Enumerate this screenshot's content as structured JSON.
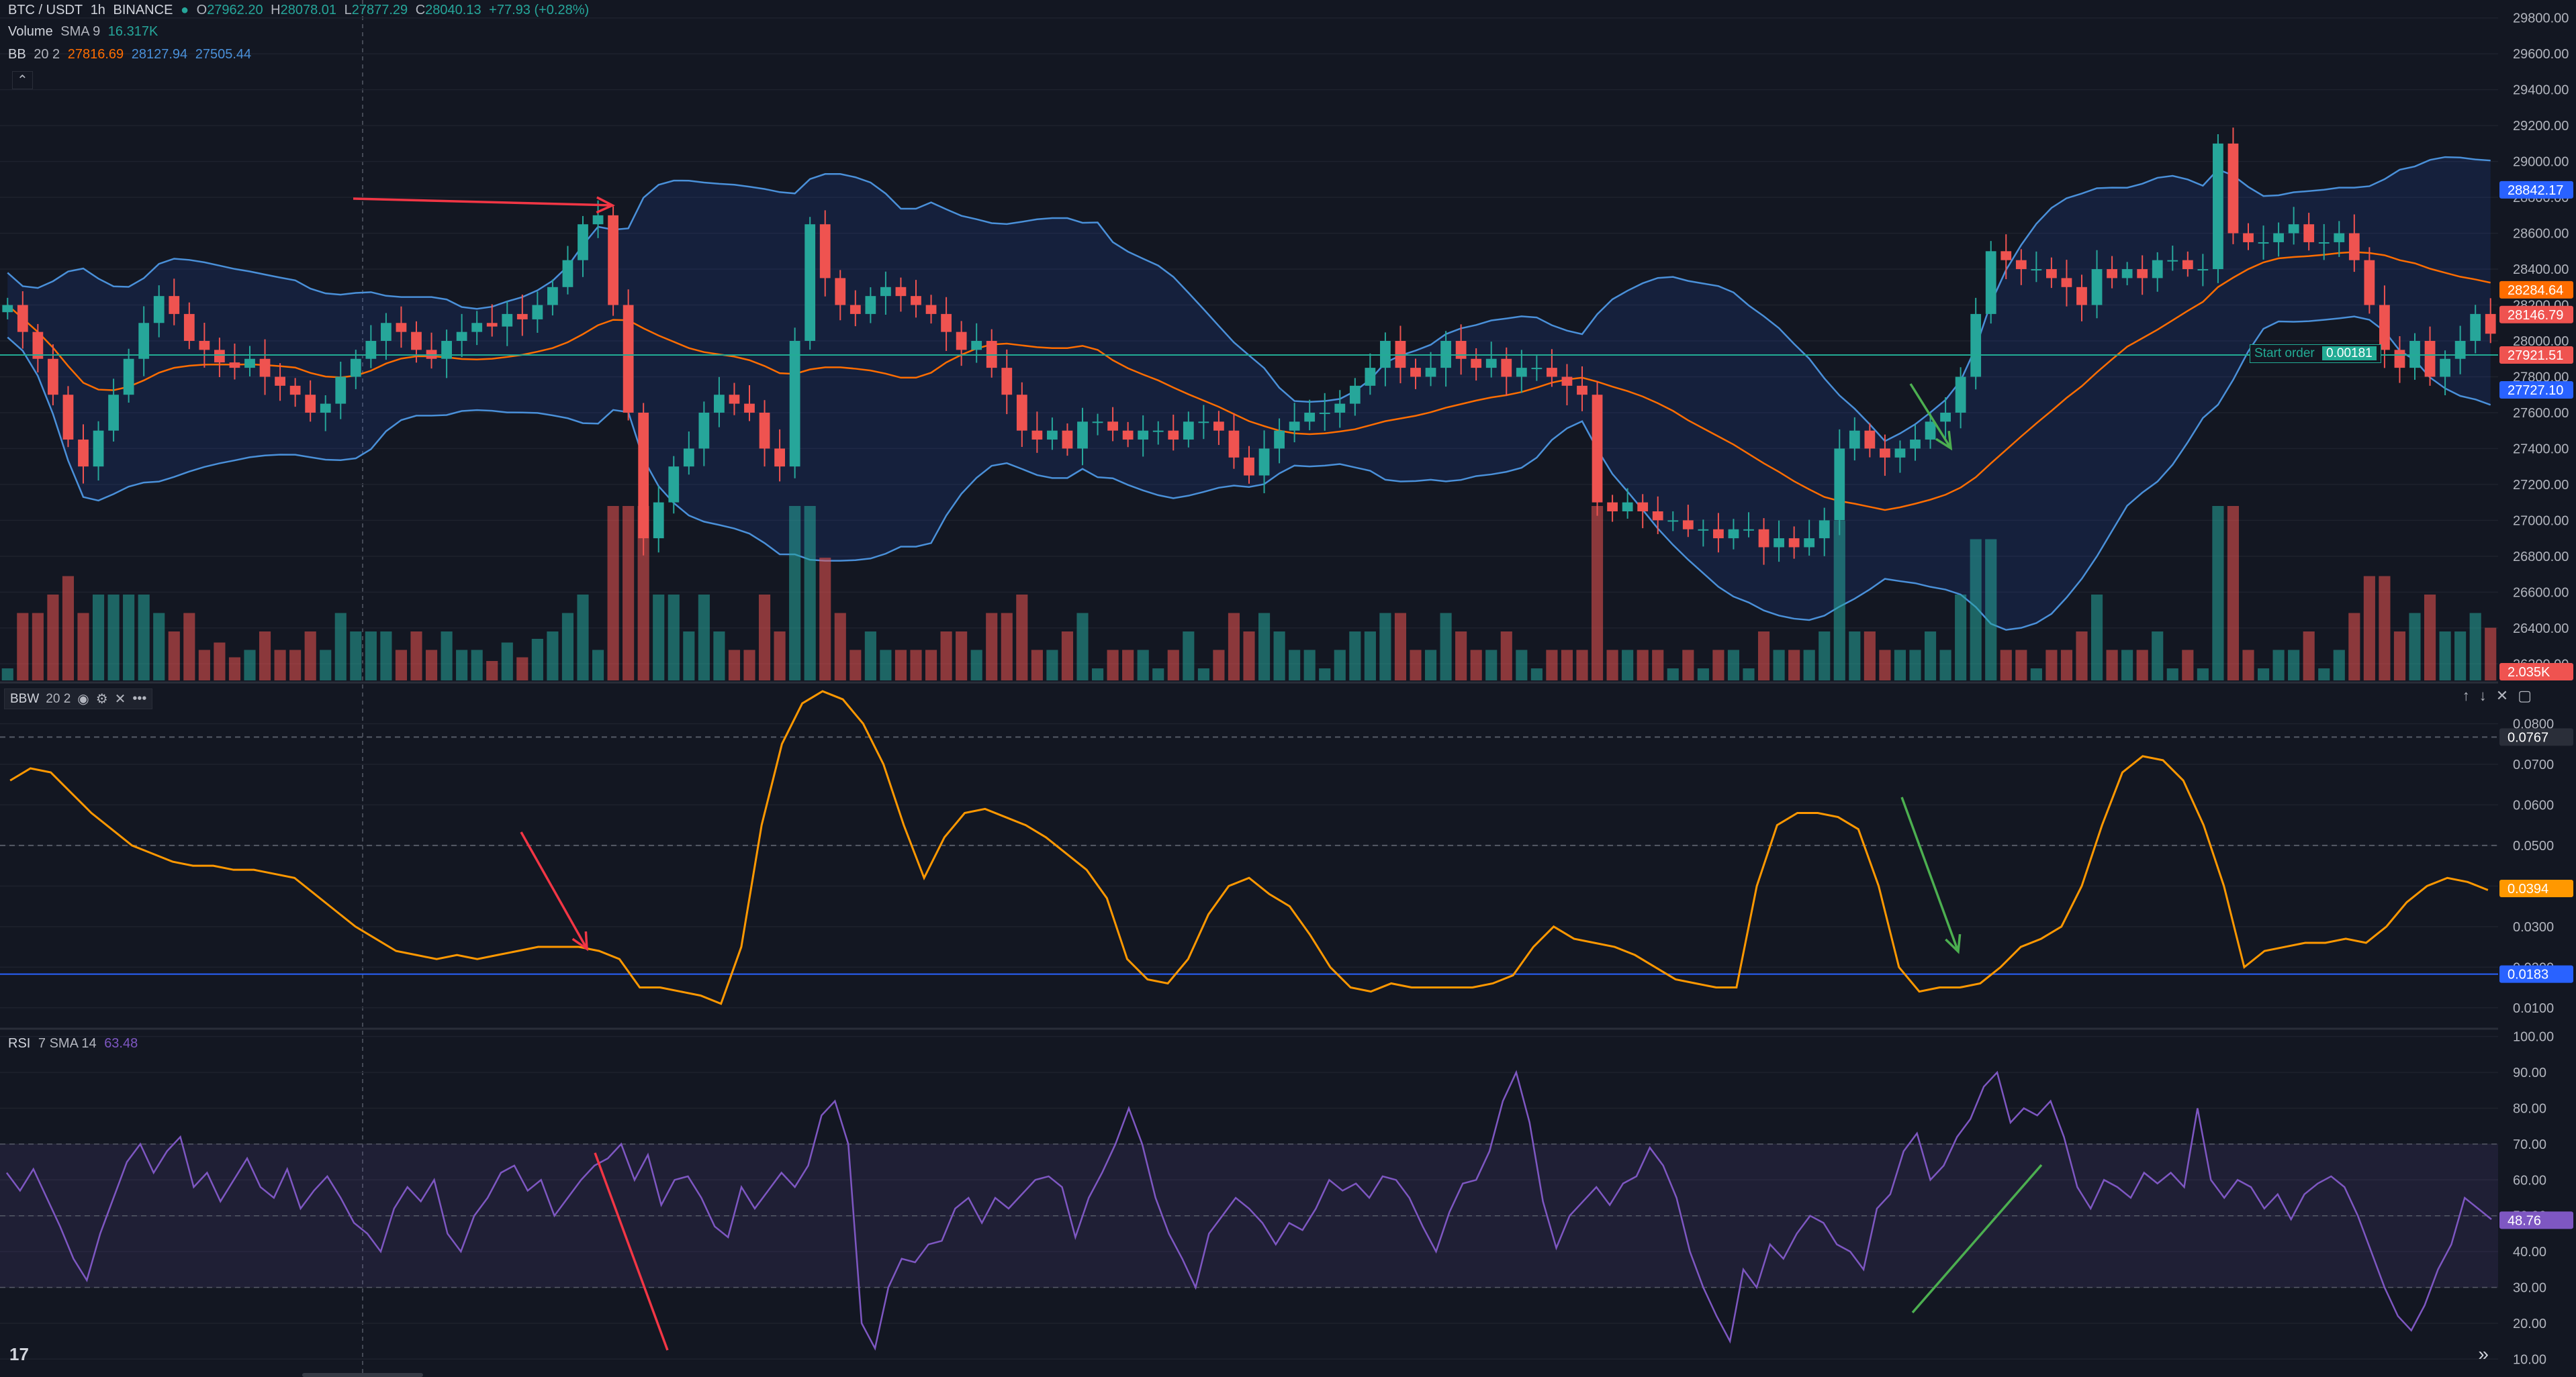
{
  "header": {
    "symbol": "BTC / USDT",
    "interval": "1h",
    "exchange": "BINANCE",
    "open_label": "O",
    "open": "27962.20",
    "high_label": "H",
    "high": "28078.01",
    "low_label": "L",
    "low": "27877.29",
    "close_label": "C",
    "close": "28040.13",
    "change": "+77.93 (+0.28%)"
  },
  "volume_legend": {
    "name": "Volume",
    "ma": "SMA 9",
    "value": "16.317K"
  },
  "bb_legend": {
    "name": "BB",
    "params": "20 2",
    "basis": "27816.69",
    "upper": "28127.94",
    "lower": "27505.44"
  },
  "bbw_legend": {
    "name": "BBW",
    "params": "20 2"
  },
  "rsi_legend": {
    "name": "RSI",
    "params": "7 SMA 14",
    "value": "63.48"
  },
  "order": {
    "label": "Start order",
    "qty": "0.00181"
  },
  "icons": {
    "eye": "eye-icon",
    "settings": "gear-icon",
    "close": "close-icon",
    "more": "more-icon",
    "collapse": "chevron-up-icon",
    "logo": "tradingview-logo-icon",
    "scroll": "fast-forward-icon",
    "up": "arrow-up-icon",
    "down": "arrow-down-icon",
    "maximize": "maximize-icon"
  },
  "colors": {
    "bg": "#131722",
    "up": "#26a69a",
    "down": "#ef5350",
    "bb_band": "#2962ff",
    "bb_line": "#4a90d9",
    "bb_basis": "#ff6d00",
    "bbw": "#ff9800",
    "rsi": "#7e57c2",
    "grid": "#1e222d",
    "axis_text": "#b2b5be",
    "arrow_red": "#f23645",
    "arrow_green": "#4caf50"
  },
  "chart_data": [
    {
      "type": "candlestick",
      "title": "BTC / USDT",
      "ylim": [
        26100,
        29900
      ],
      "y_ticks": [
        "29800.00",
        "29600.00",
        "29400.00",
        "29200.00",
        "29000.00",
        "28800.00",
        "28600.00",
        "28400.00",
        "28200.00",
        "28000.00",
        "27800.00",
        "27600.00",
        "27400.00",
        "27200.00",
        "27000.00",
        "26800.00",
        "26600.00",
        "26400.00",
        "26200.00"
      ],
      "closes": [
        28200,
        28050,
        27900,
        27700,
        27450,
        27300,
        27500,
        27700,
        27900,
        28100,
        28250,
        28150,
        28000,
        27950,
        27880,
        27850,
        27900,
        27800,
        27750,
        27700,
        27600,
        27650,
        27800,
        27900,
        28000,
        28100,
        28050,
        27950,
        27900,
        28000,
        28050,
        28100,
        28080,
        28150,
        28120,
        28200,
        28300,
        28450,
        28650,
        28700,
        28200,
        27600,
        26900,
        27100,
        27300,
        27400,
        27600,
        27700,
        27650,
        27600,
        27400,
        27300,
        28000,
        28650,
        28350,
        28200,
        28150,
        28250,
        28300,
        28250,
        28200,
        28150,
        28050,
        27950,
        28000,
        27850,
        27700,
        27500,
        27450,
        27500,
        27400,
        27550,
        27550,
        27500,
        27450,
        27500,
        27500,
        27450,
        27550,
        27550,
        27500,
        27350,
        27250,
        27400,
        27500,
        27550,
        27600,
        27600,
        27650,
        27750,
        27850,
        28000,
        27850,
        27800,
        27850,
        28000,
        27900,
        27850,
        27900,
        27800,
        27850,
        27850,
        27800,
        27750,
        27700,
        27100,
        27050,
        27100,
        27050,
        27000,
        27000,
        26950,
        26950,
        26900,
        26950,
        26950,
        26850,
        26900,
        26850,
        26900,
        27000,
        27400,
        27500,
        27400,
        27350,
        27400,
        27450,
        27550,
        27600,
        27800,
        28150,
        28500,
        28450,
        28400,
        28400,
        28350,
        28300,
        28200,
        28400,
        28350,
        28400,
        28350,
        28450,
        28450,
        28400,
        28400,
        29100,
        28600,
        28550,
        28550,
        28600,
        28650,
        28550,
        28550,
        28600,
        28450,
        28200,
        27950,
        27850,
        28000,
        27800,
        27900,
        28000,
        28150,
        28040
      ],
      "y_badges": [
        {
          "value": "28842.17",
          "label": "28842.17",
          "color": "#2962ff"
        },
        {
          "value": "28284.64",
          "label": "28284.64",
          "color": "#ff6d00"
        },
        {
          "value": "28146.79",
          "label": "28146.79",
          "color": "#ef5350"
        },
        {
          "value": "27921.51",
          "label": "27921.51",
          "color": "#22ab94"
        },
        {
          "value": "27921.51",
          "label": "27921.51",
          "color": "#ef5350"
        },
        {
          "value": "27727.10",
          "label": "27727.10",
          "color": "#2962ff"
        }
      ],
      "order_line": 27921.51,
      "volume_badge": "2.035K"
    },
    {
      "type": "line",
      "title": "BBW 20 2",
      "ylim": [
        0.005,
        0.09
      ],
      "y_ticks": [
        "0.0800",
        "0.0700",
        "0.0600",
        "0.0500",
        "0.0400",
        "0.0300",
        "0.0200",
        "0.0100"
      ],
      "values": [
        0.066,
        0.069,
        0.068,
        0.063,
        0.058,
        0.054,
        0.05,
        0.048,
        0.046,
        0.045,
        0.045,
        0.044,
        0.044,
        0.043,
        0.042,
        0.038,
        0.034,
        0.03,
        0.027,
        0.024,
        0.023,
        0.022,
        0.023,
        0.022,
        0.023,
        0.024,
        0.025,
        0.025,
        0.025,
        0.024,
        0.022,
        0.015,
        0.015,
        0.014,
        0.013,
        0.011,
        0.025,
        0.055,
        0.075,
        0.085,
        0.088,
        0.086,
        0.08,
        0.07,
        0.055,
        0.042,
        0.052,
        0.058,
        0.059,
        0.057,
        0.055,
        0.052,
        0.048,
        0.044,
        0.037,
        0.022,
        0.017,
        0.016,
        0.022,
        0.033,
        0.04,
        0.042,
        0.038,
        0.035,
        0.028,
        0.02,
        0.015,
        0.014,
        0.016,
        0.015,
        0.015,
        0.015,
        0.015,
        0.016,
        0.018,
        0.025,
        0.03,
        0.027,
        0.026,
        0.025,
        0.023,
        0.02,
        0.017,
        0.016,
        0.015,
        0.015,
        0.04,
        0.055,
        0.058,
        0.058,
        0.057,
        0.054,
        0.04,
        0.02,
        0.014,
        0.015,
        0.015,
        0.016,
        0.02,
        0.025,
        0.027,
        0.03,
        0.04,
        0.055,
        0.068,
        0.072,
        0.071,
        0.066,
        0.055,
        0.04,
        0.02,
        0.024,
        0.025,
        0.026,
        0.026,
        0.027,
        0.026,
        0.03,
        0.036,
        0.04,
        0.042,
        0.041,
        0.039
      ],
      "y_badges": [
        {
          "value": "0.0767",
          "label": "0.0767",
          "color": "#2a2e39"
        },
        {
          "value": "0.0394",
          "label": "0.0394",
          "color": "#ff9800"
        },
        {
          "value": "0.0183",
          "label": "0.0183",
          "color": "#2962ff"
        }
      ],
      "levels": [
        0.0767,
        0.05,
        0.0183
      ]
    },
    {
      "type": "line",
      "title": "RSI 7 SMA 14",
      "ylim": [
        5,
        102
      ],
      "y_ticks": [
        "100.00",
        "90.00",
        "80.00",
        "70.00",
        "60.00",
        "50.00",
        "40.00",
        "30.00",
        "20.00",
        "10.00"
      ],
      "values": [
        62,
        57,
        63,
        55,
        47,
        38,
        32,
        45,
        55,
        65,
        70,
        62,
        68,
        72,
        58,
        62,
        54,
        60,
        66,
        58,
        55,
        63,
        52,
        57,
        61,
        55,
        48,
        45,
        40,
        52,
        58,
        54,
        60,
        45,
        40,
        50,
        55,
        62,
        64,
        57,
        60,
        50,
        55,
        60,
        64,
        66,
        70,
        60,
        67,
        53,
        60,
        61,
        55,
        47,
        44,
        58,
        52,
        57,
        62,
        58,
        64,
        78,
        82,
        70,
        20,
        13,
        30,
        38,
        37,
        42,
        43,
        52,
        55,
        48,
        55,
        52,
        56,
        60,
        61,
        58,
        44,
        55,
        62,
        70,
        80,
        70,
        55,
        45,
        38,
        30,
        45,
        50,
        55,
        52,
        48,
        42,
        48,
        46,
        52,
        60,
        57,
        59,
        55,
        61,
        60,
        55,
        47,
        40,
        51,
        59,
        60,
        68,
        82,
        90,
        76,
        54,
        41,
        50,
        54,
        58,
        53,
        59,
        61,
        69,
        64,
        55,
        40,
        30,
        22,
        15,
        35,
        30,
        42,
        38,
        45,
        50,
        48,
        42,
        40,
        35,
        52,
        56,
        68,
        73,
        60,
        64,
        72,
        77,
        86,
        90,
        76,
        80,
        78,
        82,
        72,
        58,
        52,
        60,
        58,
        55,
        62,
        59,
        62,
        58,
        80,
        60,
        55,
        60,
        58,
        52,
        56,
        49,
        56,
        59,
        61,
        58,
        50,
        40,
        30,
        22,
        18,
        25,
        35,
        42,
        55,
        52,
        49
      ],
      "y_badges": [
        {
          "value": "48.76",
          "label": "48.76",
          "color": "#7e57c2"
        }
      ],
      "band": [
        30,
        70
      ],
      "mid": 50
    }
  ]
}
